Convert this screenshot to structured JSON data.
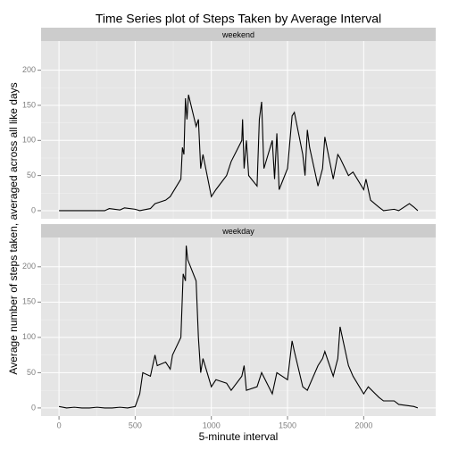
{
  "chart_data": {
    "type": "line",
    "title": "Time Series plot of Steps Taken by Average Interval",
    "x_label": "5-minute interval",
    "y_label": "Average number of steps taken, averaged across all like days",
    "xlim": [
      -117.75,
      2472.75
    ],
    "xticks": [
      0,
      500,
      1000,
      1500,
      2000
    ],
    "ylim": [
      -11.5,
      241.5
    ],
    "yticks": [
      0,
      50,
      100,
      150,
      200
    ],
    "grid": true,
    "color": "#000000",
    "facets": [
      {
        "name": "weekend",
        "x": [
          0,
          50,
          100,
          150,
          200,
          250,
          300,
          330,
          400,
          430,
          500,
          530,
          600,
          630,
          700,
          730,
          800,
          810,
          820,
          830,
          840,
          850,
          900,
          915,
          930,
          945,
          1000,
          1030,
          1100,
          1130,
          1200,
          1205,
          1215,
          1230,
          1245,
          1300,
          1315,
          1330,
          1345,
          1400,
          1415,
          1430,
          1445,
          1500,
          1530,
          1545,
          1600,
          1615,
          1630,
          1645,
          1700,
          1730,
          1745,
          1800,
          1830,
          1845,
          1900,
          1930,
          2000,
          2015,
          2045,
          2100,
          2130,
          2200,
          2230,
          2300,
          2330,
          2355
        ],
        "values": [
          0,
          0,
          0,
          0,
          0,
          0,
          0,
          3,
          1,
          4,
          2,
          0,
          3,
          10,
          15,
          20,
          45,
          90,
          80,
          160,
          130,
          165,
          120,
          130,
          60,
          80,
          20,
          30,
          50,
          70,
          100,
          130,
          60,
          100,
          50,
          35,
          130,
          155,
          60,
          100,
          45,
          110,
          30,
          60,
          135,
          140,
          80,
          50,
          115,
          90,
          35,
          60,
          105,
          45,
          80,
          75,
          50,
          55,
          30,
          45,
          15,
          5,
          0,
          2,
          0,
          10,
          5,
          0
        ]
      },
      {
        "name": "weekday",
        "x": [
          0,
          50,
          100,
          150,
          200,
          250,
          300,
          350,
          400,
          450,
          500,
          530,
          550,
          600,
          630,
          645,
          700,
          730,
          745,
          800,
          815,
          830,
          835,
          845,
          900,
          915,
          930,
          945,
          1000,
          1030,
          1100,
          1130,
          1200,
          1215,
          1230,
          1300,
          1330,
          1400,
          1430,
          1500,
          1530,
          1545,
          1600,
          1630,
          1700,
          1730,
          1745,
          1800,
          1830,
          1845,
          1900,
          1930,
          2000,
          2030,
          2100,
          2130,
          2200,
          2230,
          2300,
          2330,
          2355
        ],
        "values": [
          2,
          0,
          1,
          0,
          0,
          1,
          0,
          0,
          1,
          0,
          2,
          20,
          50,
          45,
          75,
          60,
          65,
          55,
          75,
          100,
          190,
          180,
          230,
          210,
          180,
          100,
          50,
          70,
          30,
          40,
          35,
          25,
          45,
          60,
          25,
          30,
          50,
          20,
          50,
          40,
          95,
          80,
          30,
          25,
          60,
          70,
          80,
          45,
          70,
          115,
          60,
          45,
          20,
          30,
          15,
          10,
          10,
          5,
          3,
          2,
          0
        ]
      }
    ]
  }
}
